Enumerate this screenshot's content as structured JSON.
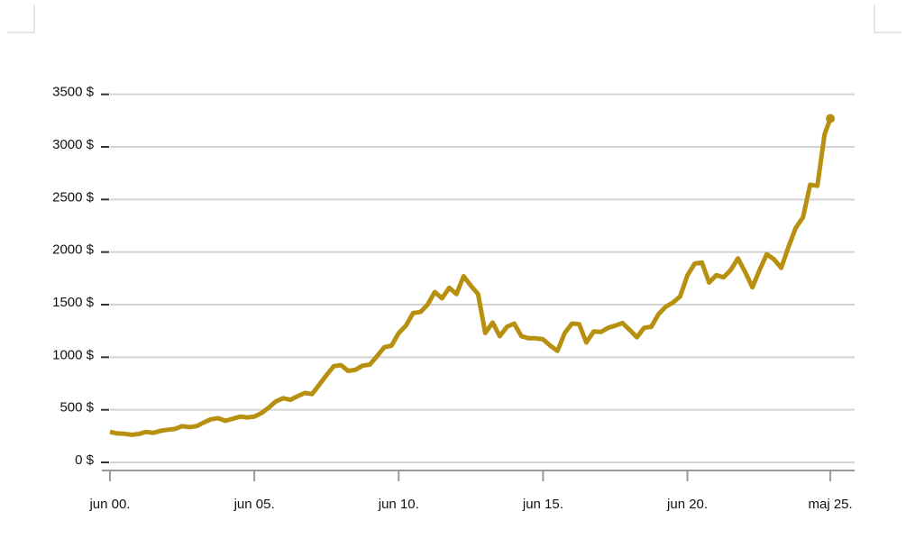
{
  "chart_data": {
    "type": "line",
    "x": [
      2000.42,
      2000.67,
      2000.92,
      2001.17,
      2001.42,
      2001.67,
      2001.92,
      2002.17,
      2002.42,
      2002.67,
      2002.92,
      2003.17,
      2003.42,
      2003.67,
      2003.92,
      2004.17,
      2004.42,
      2004.67,
      2004.92,
      2005.17,
      2005.42,
      2005.67,
      2005.92,
      2006.17,
      2006.42,
      2006.67,
      2006.92,
      2007.17,
      2007.42,
      2007.67,
      2007.92,
      2008.17,
      2008.42,
      2008.67,
      2008.92,
      2009.17,
      2009.42,
      2009.67,
      2009.92,
      2010.17,
      2010.42,
      2010.67,
      2010.92,
      2011.17,
      2011.42,
      2011.67,
      2011.92,
      2012.17,
      2012.42,
      2012.67,
      2012.92,
      2013.17,
      2013.42,
      2013.67,
      2013.92,
      2014.17,
      2014.42,
      2014.67,
      2014.92,
      2015.17,
      2015.42,
      2015.67,
      2015.92,
      2016.17,
      2016.42,
      2016.67,
      2016.92,
      2017.17,
      2017.42,
      2017.67,
      2017.92,
      2018.17,
      2018.42,
      2018.67,
      2018.92,
      2019.17,
      2019.42,
      2019.67,
      2019.92,
      2020.17,
      2020.42,
      2020.67,
      2020.92,
      2021.17,
      2021.42,
      2021.67,
      2021.92,
      2022.17,
      2022.42,
      2022.67,
      2022.92,
      2023.17,
      2023.42,
      2023.67,
      2023.92,
      2024.17,
      2024.42,
      2024.67,
      2024.92,
      2025.17,
      2025.37
    ],
    "series": [
      {
        "color": "#b8900f",
        "values": [
          290,
          275,
          272,
          262,
          270,
          290,
          280,
          300,
          310,
          318,
          345,
          335,
          345,
          380,
          410,
          420,
          395,
          415,
          435,
          428,
          435,
          470,
          520,
          580,
          610,
          595,
          630,
          660,
          650,
          740,
          830,
          915,
          925,
          870,
          880,
          920,
          930,
          1010,
          1095,
          1110,
          1230,
          1300,
          1420,
          1430,
          1500,
          1620,
          1560,
          1660,
          1600,
          1770,
          1680,
          1600,
          1230,
          1330,
          1200,
          1290,
          1320,
          1200,
          1180,
          1180,
          1170,
          1110,
          1060,
          1230,
          1320,
          1315,
          1140,
          1245,
          1240,
          1280,
          1300,
          1325,
          1260,
          1190,
          1280,
          1290,
          1410,
          1480,
          1520,
          1580,
          1780,
          1890,
          1900,
          1710,
          1780,
          1760,
          1830,
          1940,
          1810,
          1665,
          1830,
          1980,
          1930,
          1850,
          2050,
          2230,
          2330,
          2640,
          2630,
          3120,
          3270
        ]
      }
    ],
    "xlim": [
      2000.14,
      2026.21
    ],
    "xticks": [
      {
        "value": 2000.42,
        "label": "jun 00."
      },
      {
        "value": 2005.42,
        "label": "jun 05."
      },
      {
        "value": 2010.42,
        "label": "jun 10."
      },
      {
        "value": 2015.42,
        "label": "jun 15."
      },
      {
        "value": 2020.42,
        "label": "jun 20."
      },
      {
        "value": 2025.37,
        "label": "maj 25."
      }
    ],
    "ylim": [
      -77,
      3600
    ],
    "yticks": [
      {
        "value": 0,
        "label": "0 $"
      },
      {
        "value": 500,
        "label": "500 $"
      },
      {
        "value": 1000,
        "label": "1000 $"
      },
      {
        "value": 1500,
        "label": "1500 $"
      },
      {
        "value": 2000,
        "label": "2000 $"
      },
      {
        "value": 2500,
        "label": "2500 $"
      },
      {
        "value": 3000,
        "label": "3000 $"
      },
      {
        "value": 3500,
        "label": "3500 $"
      }
    ],
    "grid": true
  }
}
